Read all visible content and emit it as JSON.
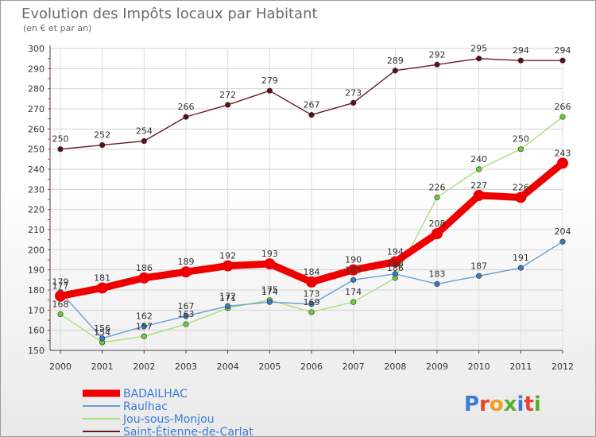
{
  "chart_data": {
    "type": "line",
    "title": "Evolution des Impôts locaux par Habitant",
    "subtitle": "(en € et par an)",
    "categories": [
      "2000",
      "2001",
      "2002",
      "2003",
      "2004",
      "2005",
      "2006",
      "2007",
      "2008",
      "2009",
      "2010",
      "2011",
      "2012"
    ],
    "ylim": [
      150,
      300
    ],
    "yticks": [
      150,
      160,
      170,
      180,
      190,
      200,
      210,
      220,
      230,
      240,
      250,
      260,
      270,
      280,
      290,
      300
    ],
    "grid": true,
    "legend_position": "bottom-left",
    "series": [
      {
        "name": "Saint-Étienne-de-Carlat",
        "color": "#6b1a22",
        "dot": "#5a1016",
        "values": [
          250,
          252,
          254,
          266,
          272,
          279,
          267,
          273,
          289,
          292,
          295,
          294,
          294
        ]
      },
      {
        "name": "Jou-sous-Monjou",
        "color": "#a6e07a",
        "dot": "#6fc93c",
        "values": [
          168,
          154,
          157,
          163,
          171,
          175,
          169,
          174,
          186,
          226,
          240,
          250,
          266
        ]
      },
      {
        "name": "Raulhac",
        "color": "#6a9fd3",
        "dot": "#3a78c0",
        "values": [
          179,
          156,
          162,
          167,
          172,
          174,
          173,
          185,
          188,
          183,
          187,
          191,
          204
        ]
      },
      {
        "name": "BADAILHAC",
        "color": "#ee0000",
        "dot": "#ee0000",
        "values": [
          177,
          181,
          186,
          189,
          192,
          193,
          184,
          190,
          194,
          208,
          227,
          226,
          243
        ],
        "bold": true
      }
    ],
    "data_labels": {
      "Saint-Étienne-de-Carlat": [
        "250",
        "252",
        "254",
        "266",
        "272",
        "279",
        "267",
        "273",
        "289",
        "292",
        "295",
        "294",
        "294"
      ],
      "Jou-sous-Monjou": [
        "168",
        "154",
        "157",
        "163",
        "171",
        "175",
        "169",
        "174",
        "186",
        "226",
        "240",
        "250",
        "266"
      ],
      "Raulhac": [
        "179",
        "156",
        "162",
        "167",
        "172",
        "174",
        "173",
        "185",
        "188",
        "183",
        "187",
        "191",
        "204"
      ],
      "BADAILHAC": [
        "177",
        "181",
        "186",
        "189",
        "192",
        "193",
        "184",
        "190",
        "194",
        "208",
        "227",
        "226",
        "243"
      ]
    }
  },
  "legend": [
    {
      "name": "BADAILHAC",
      "color": "#ee0000"
    },
    {
      "name": "Raulhac",
      "color": "#6a9fd3"
    },
    {
      "name": "Jou-sous-Monjou",
      "color": "#a6e07a"
    },
    {
      "name": "Saint-Étienne-de-Carlat",
      "color": "#6b1a22"
    }
  ],
  "logo": {
    "text": "Proxiti"
  }
}
